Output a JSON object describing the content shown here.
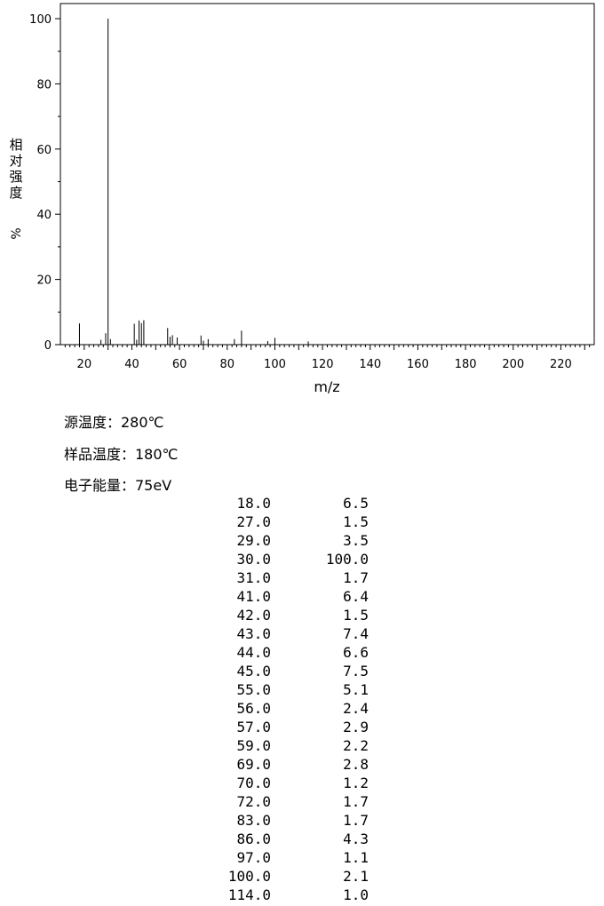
{
  "chart_data": {
    "type": "bar",
    "xlabel": "m/z",
    "ylabel": "相对强度 %",
    "ylabel_chars": [
      "相",
      "对",
      "强",
      "度",
      "%"
    ],
    "xlim": [
      10,
      234
    ],
    "ylim": [
      0,
      100
    ],
    "x_ticks": [
      20,
      40,
      60,
      80,
      100,
      120,
      140,
      160,
      180,
      200,
      220
    ],
    "y_ticks": [
      0,
      20,
      40,
      60,
      80,
      100
    ],
    "x_tick_labels": [
      "20",
      "40",
      "60",
      "80",
      "100",
      "120",
      "140",
      "160",
      "180",
      "200",
      "220"
    ],
    "y_tick_labels": [
      "0",
      "20",
      "40",
      "60",
      "80",
      "100"
    ],
    "peaks": [
      {
        "mz": 18,
        "intensity": 6.5
      },
      {
        "mz": 27,
        "intensity": 1.5
      },
      {
        "mz": 29,
        "intensity": 3.5
      },
      {
        "mz": 30,
        "intensity": 100.0
      },
      {
        "mz": 31,
        "intensity": 1.7
      },
      {
        "mz": 41,
        "intensity": 6.4
      },
      {
        "mz": 42,
        "intensity": 1.5
      },
      {
        "mz": 43,
        "intensity": 7.4
      },
      {
        "mz": 44,
        "intensity": 6.6
      },
      {
        "mz": 45,
        "intensity": 7.5
      },
      {
        "mz": 55,
        "intensity": 5.1
      },
      {
        "mz": 56,
        "intensity": 2.4
      },
      {
        "mz": 57,
        "intensity": 2.9
      },
      {
        "mz": 59,
        "intensity": 2.2
      },
      {
        "mz": 69,
        "intensity": 2.8
      },
      {
        "mz": 70,
        "intensity": 1.2
      },
      {
        "mz": 72,
        "intensity": 1.7
      },
      {
        "mz": 83,
        "intensity": 1.7
      },
      {
        "mz": 86,
        "intensity": 4.3
      },
      {
        "mz": 97,
        "intensity": 1.1
      },
      {
        "mz": 100,
        "intensity": 2.1
      },
      {
        "mz": 114,
        "intensity": 1.0
      }
    ]
  },
  "info": {
    "source_temp": "源温度：280℃",
    "sample_temp": "样品温度：180℃",
    "electron_energy": "电子能量：75eV"
  },
  "table": {
    "rows": [
      {
        "mz": "18.0",
        "abundance": "6.5"
      },
      {
        "mz": "27.0",
        "abundance": "1.5"
      },
      {
        "mz": "29.0",
        "abundance": "3.5"
      },
      {
        "mz": "30.0",
        "abundance": "100.0"
      },
      {
        "mz": "31.0",
        "abundance": "1.7"
      },
      {
        "mz": "41.0",
        "abundance": "6.4"
      },
      {
        "mz": "42.0",
        "abundance": "1.5"
      },
      {
        "mz": "43.0",
        "abundance": "7.4"
      },
      {
        "mz": "44.0",
        "abundance": "6.6"
      },
      {
        "mz": "45.0",
        "abundance": "7.5"
      },
      {
        "mz": "55.0",
        "abundance": "5.1"
      },
      {
        "mz": "56.0",
        "abundance": "2.4"
      },
      {
        "mz": "57.0",
        "abundance": "2.9"
      },
      {
        "mz": "59.0",
        "abundance": "2.2"
      },
      {
        "mz": "69.0",
        "abundance": "2.8"
      },
      {
        "mz": "70.0",
        "abundance": "1.2"
      },
      {
        "mz": "72.0",
        "abundance": "1.7"
      },
      {
        "mz": "83.0",
        "abundance": "1.7"
      },
      {
        "mz": "86.0",
        "abundance": "4.3"
      },
      {
        "mz": "97.0",
        "abundance": "1.1"
      },
      {
        "mz": "100.0",
        "abundance": "2.1"
      },
      {
        "mz": "114.0",
        "abundance": "1.0"
      }
    ]
  }
}
